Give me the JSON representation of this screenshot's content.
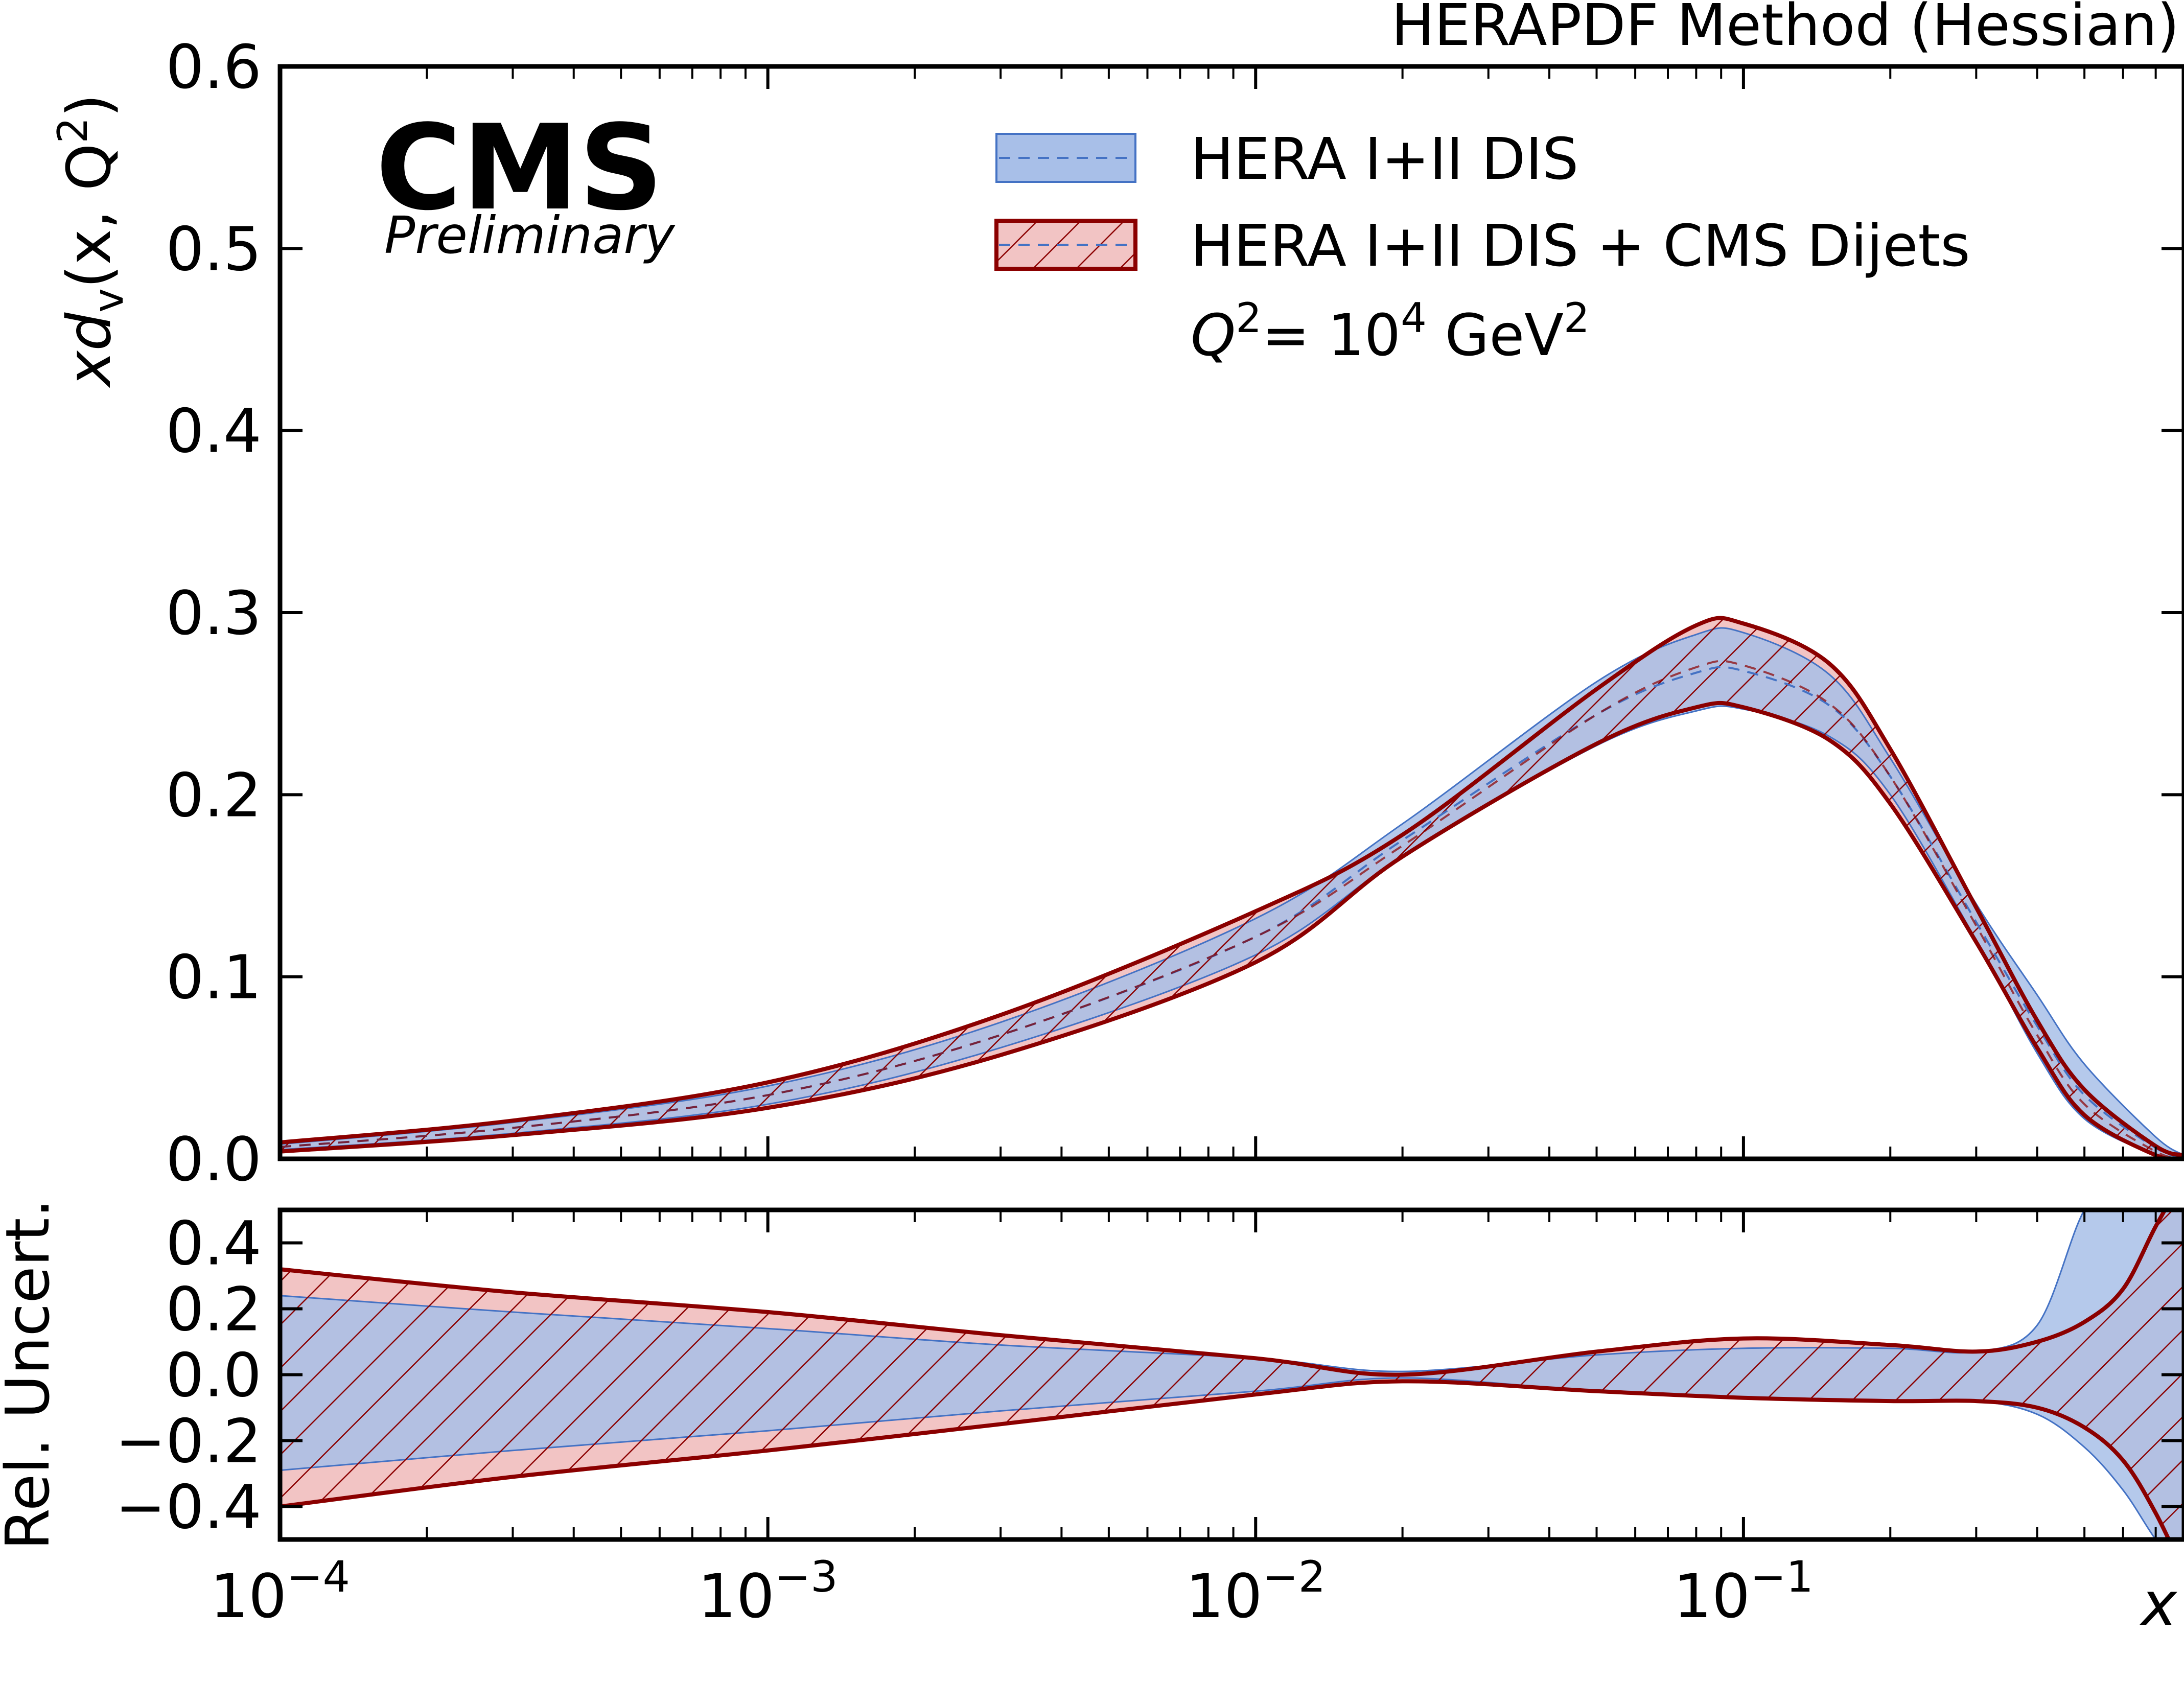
{
  "chart_data": [
    {
      "panel": "upper",
      "type": "area",
      "title": "HERAPDF Method (Hessian)",
      "logo": "CMS",
      "logo_subtitle": "Preliminary",
      "ylabel": "xd_v(x, Q^2)",
      "ylabel_parts": {
        "x": "x",
        "d": "d",
        "sub": "v",
        "rest": "(x, Q",
        "sup": "2",
        "close": ")"
      },
      "annotation": "Q^2 = 10^4 GeV^2",
      "annotation_parts": {
        "q": "Q",
        "q_sup": "2",
        "eq": "= 10",
        "pow": "4",
        "unit": " GeV",
        "unit_sup": "2"
      },
      "xscale": "log",
      "xlim": [
        0.0001,
        0.8
      ],
      "ylim": [
        0.0,
        0.6
      ],
      "yticks": [
        "0.0",
        "0.1",
        "0.2",
        "0.3",
        "0.4",
        "0.5",
        "0.6"
      ],
      "yticks_values": [
        0.0,
        0.1,
        0.2,
        0.3,
        0.4,
        0.5,
        0.6
      ],
      "legend_position": "top-right",
      "x": [
        0.0001,
        0.0003,
        0.001,
        0.003,
        0.01,
        0.02,
        0.05,
        0.08,
        0.1,
        0.15,
        0.2,
        0.3,
        0.4,
        0.5,
        0.7,
        0.8
      ],
      "series": [
        {
          "name": "HERA I+II DIS",
          "style": "blue-band-dashed-central",
          "color": "#4472c4",
          "fill": "#a8bfe8",
          "central": [
            0.0065,
            0.017,
            0.035,
            0.068,
            0.122,
            0.175,
            0.244,
            0.267,
            0.268,
            0.249,
            0.21,
            0.13,
            0.073,
            0.035,
            0.006,
            0.001
          ],
          "upper": [
            0.008,
            0.02,
            0.04,
            0.075,
            0.132,
            0.184,
            0.262,
            0.288,
            0.289,
            0.266,
            0.22,
            0.14,
            0.09,
            0.052,
            0.012,
            0.002
          ],
          "lower": [
            0.005,
            0.014,
            0.03,
            0.061,
            0.112,
            0.166,
            0.227,
            0.246,
            0.247,
            0.232,
            0.2,
            0.12,
            0.058,
            0.022,
            0.002,
            0.0
          ]
        },
        {
          "name": "HERA I+II DIS + CMS Dijets",
          "style": "red-band-hatched",
          "color": "#8b0000",
          "fill": "#f2c4c4",
          "central": [
            0.0065,
            0.017,
            0.035,
            0.068,
            0.122,
            0.172,
            0.244,
            0.27,
            0.271,
            0.25,
            0.21,
            0.128,
            0.068,
            0.03,
            0.004,
            0.0005
          ],
          "upper": [
            0.009,
            0.021,
            0.042,
            0.079,
            0.136,
            0.178,
            0.258,
            0.293,
            0.294,
            0.272,
            0.225,
            0.138,
            0.076,
            0.038,
            0.007,
            0.002
          ],
          "lower": [
            0.004,
            0.013,
            0.028,
            0.057,
            0.108,
            0.166,
            0.228,
            0.248,
            0.248,
            0.23,
            0.195,
            0.119,
            0.061,
            0.024,
            0.002,
            0.0
          ]
        }
      ]
    },
    {
      "panel": "lower",
      "type": "area",
      "ylabel": "Rel. Uncert.",
      "xlabel": "x",
      "xscale": "log",
      "xlim": [
        0.0001,
        0.8
      ],
      "ylim": [
        -0.5,
        0.5
      ],
      "xticks": [
        "10^{-4}",
        "10^{-3}",
        "10^{-2}",
        "10^{-1}"
      ],
      "xticks_parts": [
        {
          "base": "10",
          "exp": "−4"
        },
        {
          "base": "10",
          "exp": "−3"
        },
        {
          "base": "10",
          "exp": "−2"
        },
        {
          "base": "10",
          "exp": "−1"
        }
      ],
      "xticks_values": [
        0.0001,
        0.001,
        0.01,
        0.1
      ],
      "yticks": [
        "0.4",
        "0.2",
        "0.0",
        "−0.2",
        "−0.4"
      ],
      "yticks_values": [
        0.4,
        0.2,
        0.0,
        -0.2,
        -0.4
      ],
      "x": [
        0.0001,
        0.0003,
        0.001,
        0.003,
        0.01,
        0.02,
        0.05,
        0.1,
        0.2,
        0.3,
        0.4,
        0.5,
        0.6,
        0.7,
        0.8
      ],
      "series": [
        {
          "name": "HERA I+II DIS",
          "upper": [
            0.24,
            0.19,
            0.14,
            0.09,
            0.05,
            0.01,
            0.06,
            0.08,
            0.08,
            0.07,
            0.15,
            0.5,
            0.6,
            0.6,
            0.6
          ],
          "lower": [
            -0.29,
            -0.23,
            -0.17,
            -0.11,
            -0.05,
            -0.01,
            -0.05,
            -0.07,
            -0.08,
            -0.08,
            -0.12,
            -0.22,
            -0.35,
            -0.5,
            -0.6
          ]
        },
        {
          "name": "HERA I+II DIS + CMS Dijets",
          "upper": [
            0.32,
            0.25,
            0.19,
            0.12,
            0.05,
            0.0,
            0.07,
            0.11,
            0.09,
            0.07,
            0.1,
            0.16,
            0.26,
            0.45,
            0.6
          ],
          "lower": [
            -0.4,
            -0.31,
            -0.23,
            -0.15,
            -0.06,
            -0.02,
            -0.05,
            -0.07,
            -0.08,
            -0.08,
            -0.1,
            -0.16,
            -0.26,
            -0.42,
            -0.6
          ]
        }
      ]
    }
  ]
}
